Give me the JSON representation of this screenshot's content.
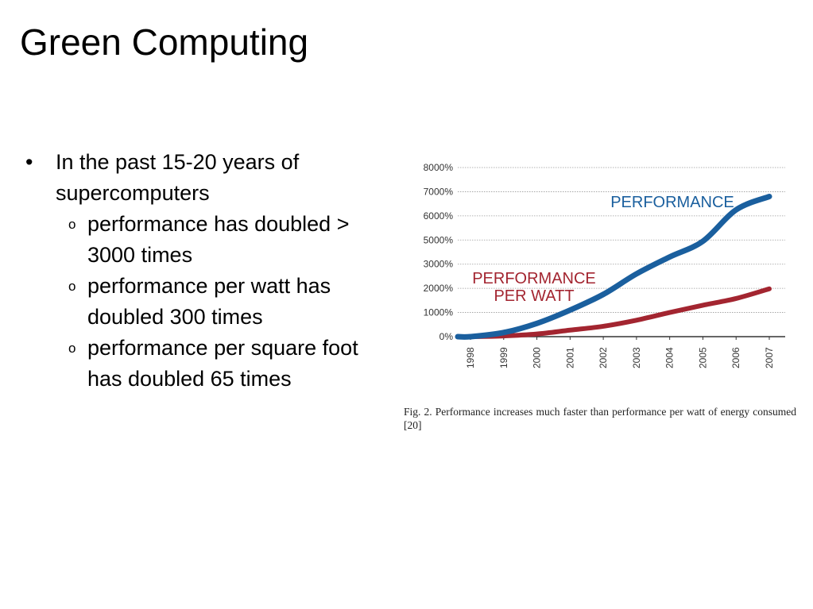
{
  "slide": {
    "title": "Green Computing"
  },
  "bullets": {
    "main": "In the past 15-20 years of supercomputers",
    "bullet_marker": "•",
    "sub_marker": "o",
    "sub_items": [
      "performance has doubled > 3000 times",
      "performance per watt has doubled 300 times",
      "performance per square foot has doubled 65 times"
    ]
  },
  "figure": {
    "caption": "Fig. 2.    Performance increases much faster than performance per watt of energy consumed [20]"
  },
  "colors": {
    "performance": "#1a5f9e",
    "performance_per_watt": "#a32530",
    "gridline": "#9a9a9a",
    "axis": "#333333"
  },
  "chart_data": {
    "type": "line",
    "x": [
      "1998",
      "1999",
      "2000",
      "2001",
      "2002",
      "2003",
      "2004",
      "2005",
      "2006",
      "2007"
    ],
    "y_ticks": [
      "0%",
      "1000%",
      "2000%",
      "3000%",
      "5000%",
      "6000%",
      "7000%",
      "8000%"
    ],
    "xlabel": "",
    "ylabel": "",
    "grid": true,
    "series": [
      {
        "name": "PERFORMANCE",
        "label_lines": [
          "PERFORMANCE"
        ],
        "color_key": "performance",
        "values": [
          0,
          170,
          550,
          1100,
          1750,
          2600,
          3600,
          4900,
          6250,
          6800
        ]
      },
      {
        "name": "PERFORMANCE PER WATT",
        "label_lines": [
          "PERFORMANCE",
          "PER WATT"
        ],
        "color_key": "performance_per_watt",
        "values": [
          0,
          30,
          110,
          270,
          430,
          680,
          1000,
          1300,
          1580,
          1980
        ]
      }
    ]
  }
}
